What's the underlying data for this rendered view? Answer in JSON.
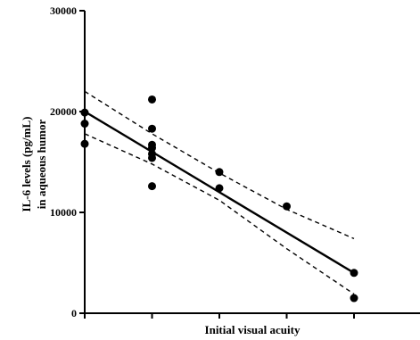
{
  "chart_data": {
    "type": "scatter",
    "xlabel": "Initial visual acuity",
    "ylabel_line1": "IL-6 levels (pg/mL)",
    "ylabel_line2": "in aqueous humor",
    "xlim": [
      0,
      5
    ],
    "ylim": [
      0,
      30000
    ],
    "x_ticks": [
      0,
      1,
      2,
      3,
      4
    ],
    "y_ticks": [
      0,
      10000,
      20000,
      30000
    ],
    "y_tick_labels": [
      "0",
      "10000",
      "20000",
      "30000"
    ],
    "points": [
      {
        "x": 0,
        "y": 19900
      },
      {
        "x": 0,
        "y": 18800
      },
      {
        "x": 0,
        "y": 16800
      },
      {
        "x": 1,
        "y": 21200
      },
      {
        "x": 1,
        "y": 18300
      },
      {
        "x": 1,
        "y": 16700
      },
      {
        "x": 1,
        "y": 16400
      },
      {
        "x": 1,
        "y": 15800
      },
      {
        "x": 1,
        "y": 15400
      },
      {
        "x": 1,
        "y": 12600
      },
      {
        "x": 2,
        "y": 14000
      },
      {
        "x": 2,
        "y": 12400
      },
      {
        "x": 3,
        "y": 10600
      },
      {
        "x": 4,
        "y": 4000
      },
      {
        "x": 4,
        "y": 1500
      }
    ],
    "regression_line": [
      {
        "x": 0,
        "y": 20000
      },
      {
        "x": 4,
        "y": 4000
      }
    ],
    "ci_upper": [
      {
        "x": 0,
        "y": 22000
      },
      {
        "x": 1,
        "y": 17800
      },
      {
        "x": 2,
        "y": 13900
      },
      {
        "x": 3,
        "y": 10300
      },
      {
        "x": 4,
        "y": 7400
      }
    ],
    "ci_lower": [
      {
        "x": 0,
        "y": 17800
      },
      {
        "x": 1,
        "y": 14800
      },
      {
        "x": 2,
        "y": 11200
      },
      {
        "x": 3,
        "y": 6400
      },
      {
        "x": 4,
        "y": 1900
      }
    ],
    "grid": false,
    "legend": "none"
  }
}
